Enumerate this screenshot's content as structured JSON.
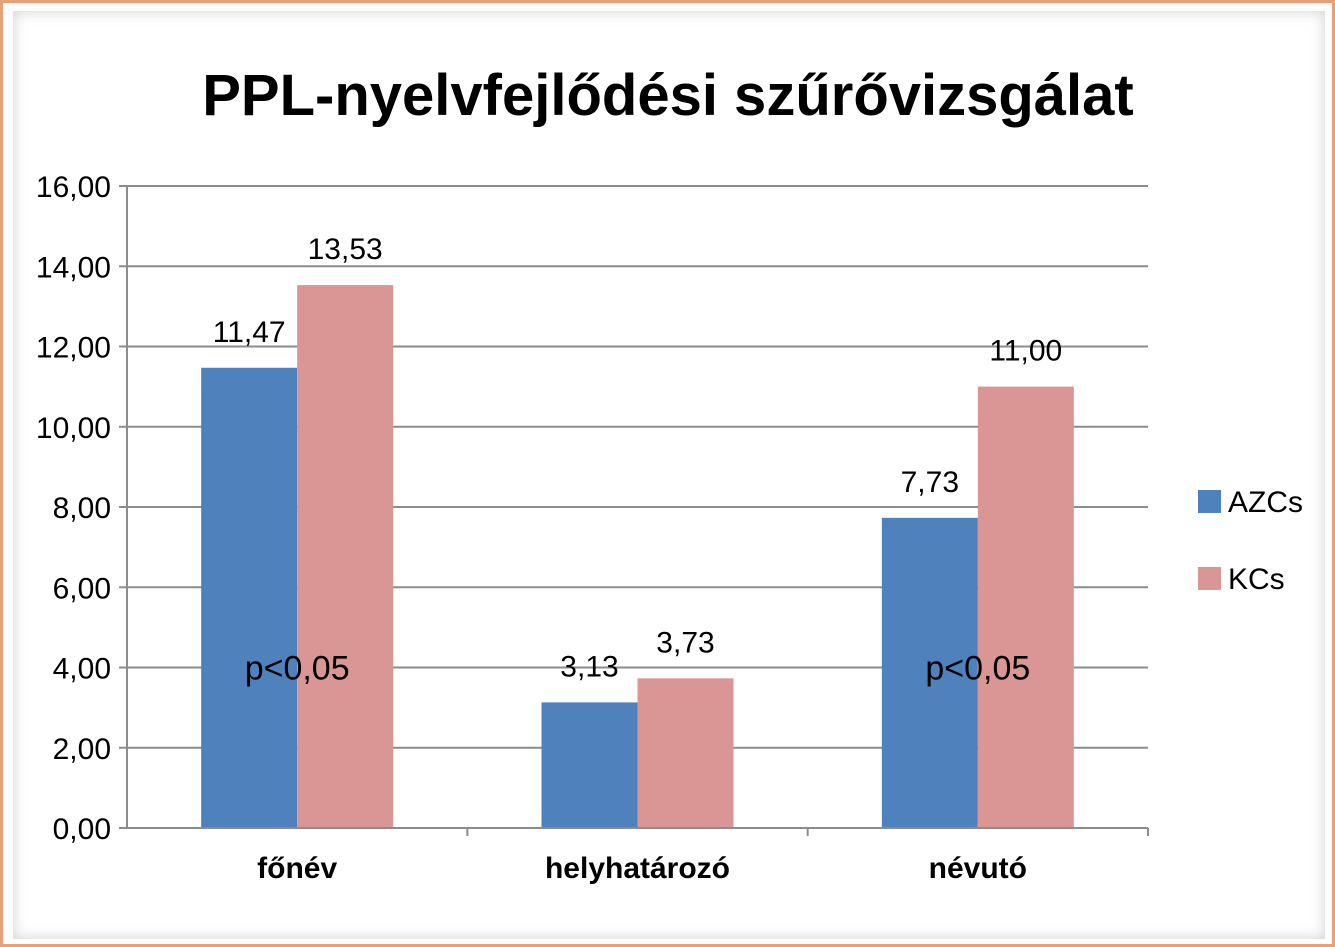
{
  "chart_data": {
    "type": "bar",
    "title": "PPL-nyelvfejlődési szűrővizsgálat",
    "categories": [
      "főnév",
      "helyhatározó",
      "névutó"
    ],
    "series": [
      {
        "name": "AZCs",
        "values": [
          11.47,
          3.13,
          7.73
        ],
        "labels": [
          "11,47",
          "3,13",
          "7,73"
        ],
        "color": "#4f81bd"
      },
      {
        "name": "KCs",
        "values": [
          13.53,
          3.73,
          11.0
        ],
        "labels": [
          "13,53",
          "3,73",
          "11,00"
        ],
        "color": "#d99694"
      }
    ],
    "ylim": [
      0,
      16
    ],
    "yticks": [
      0,
      2,
      4,
      6,
      8,
      10,
      12,
      14,
      16
    ],
    "ytick_labels": [
      "0,00",
      "2,00",
      "4,00",
      "6,00",
      "8,00",
      "10,00",
      "12,00",
      "14,00",
      "16,00"
    ],
    "grid": true,
    "legend_position": "right",
    "annotations": [
      {
        "text": "p<0,05",
        "category": "főnév",
        "y": 4.0
      },
      {
        "text": "p<0,05",
        "category": "névutó",
        "y": 4.0
      }
    ]
  }
}
